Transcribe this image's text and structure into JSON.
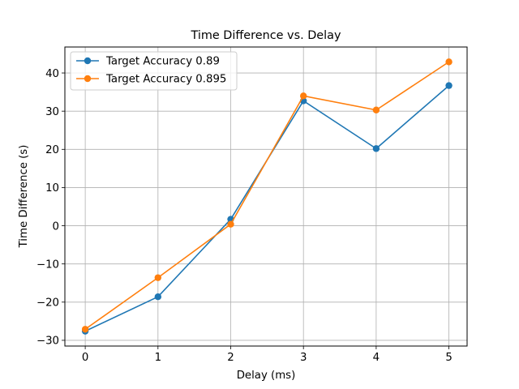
{
  "chart_data": {
    "type": "line",
    "title": "Time Difference vs. Delay",
    "xlabel": "Delay (ms)",
    "ylabel": "Time Difference (s)",
    "x": [
      0,
      1,
      2,
      3,
      4,
      5
    ],
    "xlim": [
      -0.28,
      5.25
    ],
    "ylim": [
      -31.5,
      46.8
    ],
    "xticks": [
      0,
      1,
      2,
      3,
      4,
      5
    ],
    "yticks": [
      -30,
      -20,
      -10,
      0,
      10,
      20,
      30,
      40
    ],
    "grid": true,
    "legend_position": "top-left",
    "series": [
      {
        "name": "Target Accuracy 0.89",
        "color": "#1f77b4",
        "marker": "circle",
        "values": [
          -27.6,
          -18.6,
          1.7,
          32.7,
          20.2,
          36.7
        ]
      },
      {
        "name": "Target Accuracy 0.895",
        "color": "#ff7f0e",
        "marker": "circle",
        "values": [
          -27.1,
          -13.6,
          0.4,
          34.0,
          30.3,
          42.9
        ]
      }
    ]
  }
}
